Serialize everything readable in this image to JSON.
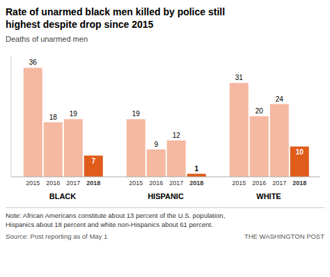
{
  "chart_data": {
    "type": "bar",
    "title": "Rate of unarmed black men killed by police still\nhighest despite drop since 2015",
    "subtitle": "Deaths of unarmed men",
    "categories": [
      "BLACK",
      "HISPANIC",
      "WHITE"
    ],
    "series": [
      {
        "name": "2015",
        "color": "#f5b8a0",
        "values": [
          36,
          19,
          31
        ]
      },
      {
        "name": "2016",
        "color": "#f5b8a0",
        "values": [
          18,
          9,
          20
        ]
      },
      {
        "name": "2017",
        "color": "#f5b8a0",
        "values": [
          19,
          12,
          24
        ]
      },
      {
        "name": "2018",
        "color": "#e05c1a",
        "values": [
          7,
          1,
          10
        ]
      }
    ],
    "ylim": [
      0,
      40
    ],
    "data_labels": true,
    "tick_labels": "x",
    "annotations": [
      "Note: African Americans constitute about 13 percent of the U.S. population,\nHispanics about 18 percent and white non-Hispanics about 61 percent.",
      "Source: Post reporting as of May 1",
      "THE WASHINGTON POST"
    ]
  }
}
